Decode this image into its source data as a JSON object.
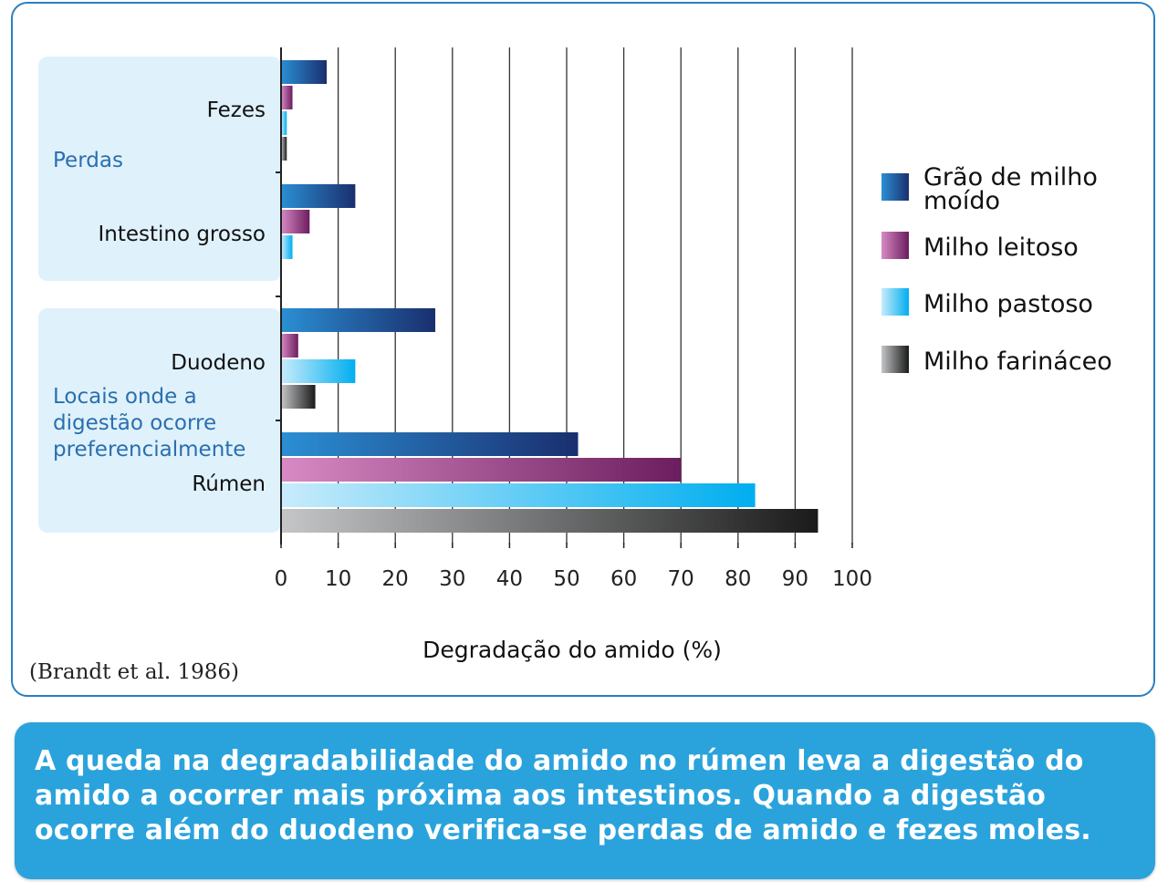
{
  "source": "(Brandt et al. 1986)",
  "caption": "A queda na degradabilidade do amido no rúmen leva a digestão do amido a ocorrer mais próxima aos intestinos. Quando a digestão ocorre além do duodeno verifica-se perdas de amido e fezes moles.",
  "bands": {
    "losses_label": "Perdas",
    "digestion_label_lines": [
      "Locais onde a",
      "digestão ocorre",
      "preferencialmente"
    ]
  },
  "chart_data": {
    "type": "bar",
    "orientation": "horizontal",
    "xlabel": "Degradação do amido (%)",
    "xlim": [
      0,
      100
    ],
    "xticks": [
      "0",
      "10",
      "20",
      "30",
      "40",
      "50",
      "60",
      "70",
      "80",
      "90",
      "100"
    ],
    "grid": true,
    "legend_position": "right",
    "categories": [
      "Fezes",
      "Intestino grosso",
      "Duodeno",
      "Rúmen"
    ],
    "series": [
      {
        "name": "Grão de milho moído",
        "label_lines": [
          "Grão de milho",
          "moído"
        ],
        "values": [
          8,
          13,
          27,
          52
        ],
        "colors": [
          "#2b8fd4",
          "#1a2f6e"
        ]
      },
      {
        "name": "Milho leitoso",
        "label_lines": [
          "Milho leitoso"
        ],
        "values": [
          2,
          5,
          3,
          70
        ],
        "colors": [
          "#d88ac4",
          "#6b1d5e"
        ]
      },
      {
        "name": "Milho pastoso",
        "label_lines": [
          "Milho pastoso"
        ],
        "values": [
          1,
          2,
          13,
          83
        ],
        "colors": [
          "#c8ecfb",
          "#00aeef"
        ]
      },
      {
        "name": "Milho farináceo",
        "label_lines": [
          "Milho farináceo"
        ],
        "values": [
          1,
          0,
          6,
          94
        ],
        "colors": [
          "#c4c6c8",
          "#1a1a1a"
        ]
      }
    ]
  },
  "colors": {
    "card_border": "#2a7fc2",
    "band_fill": "#dff1fb",
    "band_text": "#2a6fae",
    "caption_bg": "#2aa3dc",
    "grid": "#333333"
  }
}
